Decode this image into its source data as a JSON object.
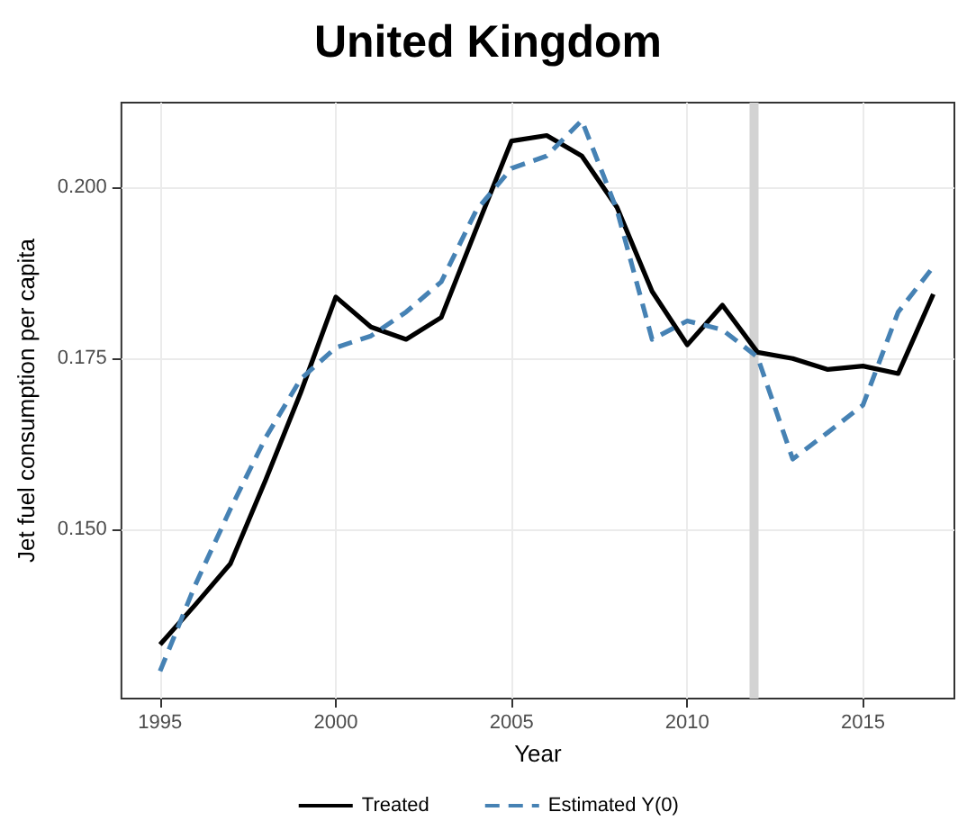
{
  "chart_data": {
    "type": "line",
    "title": "United Kingdom",
    "xlabel": "Year",
    "ylabel": "Jet fuel consumption per capita",
    "x": [
      1995,
      1996,
      1997,
      1998,
      1999,
      2000,
      2001,
      2002,
      2003,
      2004,
      2005,
      2006,
      2007,
      2008,
      2009,
      2010,
      2011,
      2012,
      2013,
      2014,
      2015,
      2016,
      2017
    ],
    "series": [
      {
        "name": "Treated",
        "color": "#000000",
        "line_style": "solid",
        "values": [
          0.1332,
          0.139,
          0.145,
          0.1572,
          0.17,
          0.184,
          0.1796,
          0.1778,
          0.181,
          0.194,
          0.2068,
          0.2076,
          0.2046,
          0.1971,
          0.1848,
          0.177,
          0.1828,
          0.1759,
          0.175,
          0.1734,
          0.1739,
          0.1728,
          0.1844
        ]
      },
      {
        "name": "Estimated Y(0)",
        "color": "#4682b4",
        "line_style": "dashed",
        "values": [
          0.1293,
          0.1419,
          0.153,
          0.1634,
          0.172,
          0.1766,
          0.1783,
          0.1818,
          0.1862,
          0.1967,
          0.2028,
          0.2046,
          0.2098,
          0.1967,
          0.1778,
          0.1805,
          0.1792,
          0.1752,
          0.1603,
          0.1642,
          0.1682,
          0.1818,
          0.1884
        ]
      }
    ],
    "xlim": [
      1993.9,
      2017.6
    ],
    "xticks": [
      1995,
      2000,
      2005,
      2010,
      2015
    ],
    "ylim": [
      0.1253,
      0.2124
    ],
    "yticks": [
      {
        "value": 0.15,
        "label": "0.150"
      },
      {
        "value": 0.175,
        "label": "0.175"
      },
      {
        "value": 0.2,
        "label": "0.200"
      }
    ],
    "ref_lines": [
      {
        "axis": "x",
        "value": 2011.9,
        "color": "#d3d3d3"
      }
    ],
    "grid": true,
    "legend": "bottom",
    "marker": "none"
  }
}
